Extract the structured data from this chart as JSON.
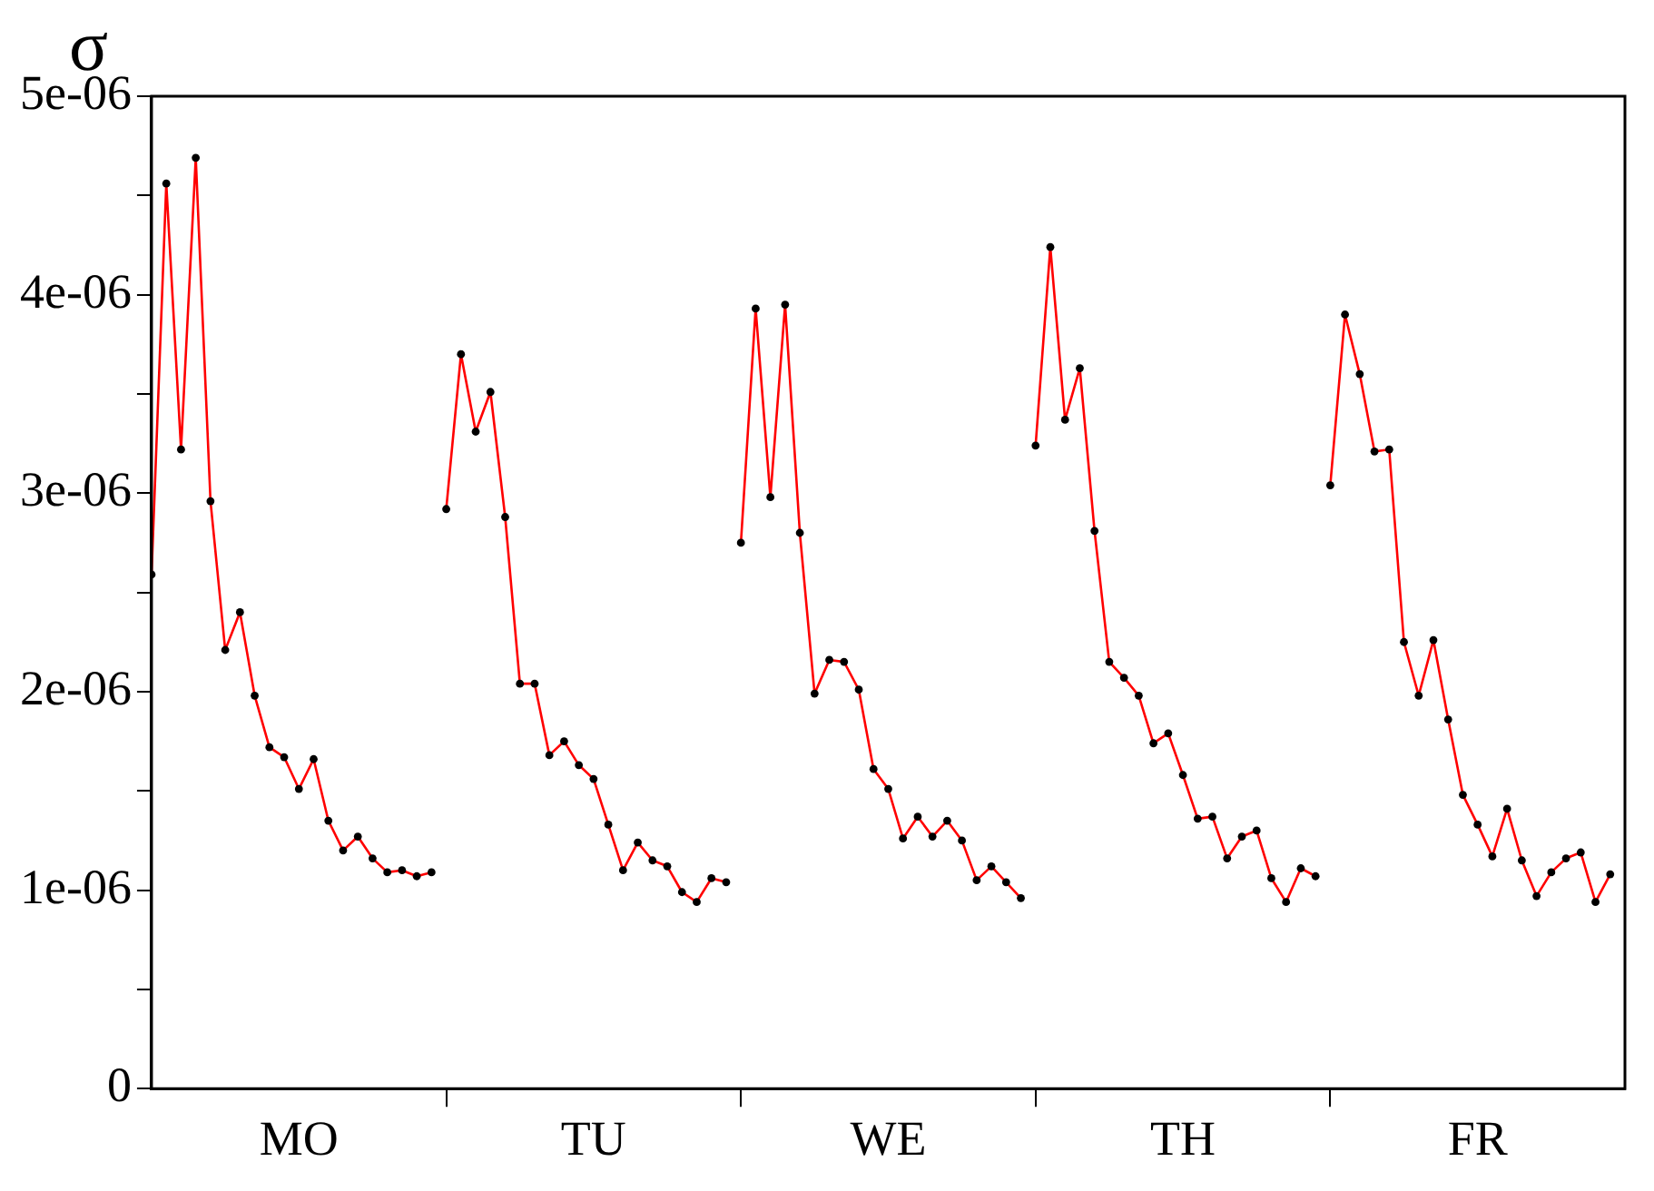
{
  "chart_data": {
    "type": "line",
    "ylabel": "σ",
    "ylim": [
      0,
      5e-06
    ],
    "categories": [
      null,
      null,
      null,
      null,
      null,
      null,
      null,
      null,
      null,
      null,
      "MO",
      null,
      null,
      null,
      null,
      null,
      null,
      null,
      null,
      null,
      null,
      null,
      null,
      null,
      null,
      null,
      null,
      null,
      null,
      null,
      "TU",
      null,
      null,
      null,
      null,
      null,
      null,
      null,
      null,
      null,
      null,
      null,
      null,
      null,
      null,
      null,
      null,
      null,
      null,
      null,
      "WE",
      null,
      null,
      null,
      null,
      null,
      null,
      null,
      null,
      null,
      null,
      null,
      null,
      null,
      null,
      null,
      null,
      null,
      null,
      null,
      "TH",
      null,
      null,
      null,
      null,
      null,
      null,
      null,
      null,
      null,
      null,
      null,
      null,
      null,
      null,
      null,
      null,
      null,
      null,
      null,
      "FR",
      null,
      null,
      null,
      null,
      null,
      null,
      null,
      null,
      null
    ],
    "yticks": [
      0,
      {
        "value": 5e-07,
        "label": null
      },
      {
        "value": 1e-06,
        "label": "1e-06"
      },
      {
        "value": 1.5e-06,
        "label": null
      },
      {
        "value": 2e-06,
        "label": "2e-06"
      },
      {
        "value": 2.5e-06,
        "label": null
      },
      {
        "value": 3e-06,
        "label": "3e-06"
      },
      {
        "value": 3.5e-06,
        "label": null
      },
      {
        "value": 4e-06,
        "label": "4e-06"
      },
      {
        "value": 4.5e-06,
        "label": null
      },
      {
        "value": 5e-06,
        "label": "5e-06"
      }
    ],
    "marker": "circle",
    "line_style": "solid",
    "series": [
      {
        "color": "#ff0000",
        "values": [
          2.59e-06,
          4.56e-06,
          3.22e-06,
          4.69e-06,
          2.96e-06,
          2.21e-06,
          2.4e-06,
          1.98e-06,
          1.72e-06,
          1.67e-06,
          1.51e-06,
          1.66e-06,
          1.35e-06,
          1.2e-06,
          1.27e-06,
          1.16e-06,
          1.09e-06,
          1.1e-06,
          1.07e-06,
          1.09e-06,
          null,
          null,
          null,
          null,
          null,
          null,
          null,
          null,
          null,
          null,
          null,
          null,
          null,
          null,
          null,
          null,
          null,
          null,
          null,
          null,
          null,
          null,
          null,
          null,
          null,
          null,
          null,
          null,
          null,
          null,
          null,
          null,
          null,
          null,
          null,
          null,
          null,
          null,
          null,
          null,
          null,
          null,
          null,
          null,
          null,
          null,
          null,
          null,
          null,
          null,
          null,
          null,
          null,
          null,
          null,
          null,
          null,
          null,
          null,
          null,
          null,
          null,
          null,
          null,
          null,
          null,
          null,
          null,
          null,
          null,
          null,
          null,
          null,
          null,
          null,
          null,
          null,
          null,
          null,
          null
        ]
      },
      {
        "color": "#ff0000",
        "values": [
          null,
          null,
          null,
          null,
          null,
          null,
          null,
          null,
          null,
          null,
          null,
          null,
          null,
          null,
          null,
          null,
          null,
          null,
          null,
          null,
          2.92e-06,
          3.7e-06,
          3.31e-06,
          3.51e-06,
          2.88e-06,
          2.04e-06,
          2.04e-06,
          1.68e-06,
          1.75e-06,
          1.63e-06,
          1.56e-06,
          1.33e-06,
          1.1e-06,
          1.24e-06,
          1.15e-06,
          1.12e-06,
          9.9e-07,
          9.4e-07,
          1.06e-06,
          1.04e-06,
          null,
          null,
          null,
          null,
          null,
          null,
          null,
          null,
          null,
          null,
          null,
          null,
          null,
          null,
          null,
          null,
          null,
          null,
          null,
          null,
          null,
          null,
          null,
          null,
          null,
          null,
          null,
          null,
          null,
          null,
          null,
          null,
          null,
          null,
          null,
          null,
          null,
          null,
          null,
          null,
          null,
          null,
          null,
          null,
          null,
          null,
          null,
          null,
          null,
          null,
          null,
          null,
          null,
          null,
          null,
          null,
          null,
          null,
          null,
          null
        ]
      },
      {
        "color": "#ff0000",
        "values": [
          null,
          null,
          null,
          null,
          null,
          null,
          null,
          null,
          null,
          null,
          null,
          null,
          null,
          null,
          null,
          null,
          null,
          null,
          null,
          null,
          null,
          null,
          null,
          null,
          null,
          null,
          null,
          null,
          null,
          null,
          null,
          null,
          null,
          null,
          null,
          null,
          null,
          null,
          null,
          null,
          2.75e-06,
          3.93e-06,
          2.98e-06,
          3.95e-06,
          2.8e-06,
          1.99e-06,
          2.16e-06,
          2.15e-06,
          2.01e-06,
          1.61e-06,
          1.51e-06,
          1.26e-06,
          1.37e-06,
          1.27e-06,
          1.35e-06,
          1.25e-06,
          1.05e-06,
          1.12e-06,
          1.04e-06,
          9.6e-07,
          null,
          null,
          null,
          null,
          null,
          null,
          null,
          null,
          null,
          null,
          null,
          null,
          null,
          null,
          null,
          null,
          null,
          null,
          null,
          null,
          null,
          null,
          null,
          null,
          null,
          null,
          null,
          null,
          null,
          null,
          null,
          null,
          null,
          null,
          null,
          null,
          null,
          null,
          null,
          null
        ]
      },
      {
        "color": "#ff0000",
        "values": [
          null,
          null,
          null,
          null,
          null,
          null,
          null,
          null,
          null,
          null,
          null,
          null,
          null,
          null,
          null,
          null,
          null,
          null,
          null,
          null,
          null,
          null,
          null,
          null,
          null,
          null,
          null,
          null,
          null,
          null,
          null,
          null,
          null,
          null,
          null,
          null,
          null,
          null,
          null,
          null,
          null,
          null,
          null,
          null,
          null,
          null,
          null,
          null,
          null,
          null,
          null,
          null,
          null,
          null,
          null,
          null,
          null,
          null,
          null,
          null,
          3.24e-06,
          4.24e-06,
          3.37e-06,
          3.63e-06,
          2.81e-06,
          2.15e-06,
          2.07e-06,
          1.98e-06,
          1.74e-06,
          1.79e-06,
          1.58e-06,
          1.36e-06,
          1.37e-06,
          1.16e-06,
          1.27e-06,
          1.3e-06,
          1.06e-06,
          9.4e-07,
          1.11e-06,
          1.07e-06,
          null,
          null,
          null,
          null,
          null,
          null,
          null,
          null,
          null,
          null,
          null,
          null,
          null,
          null,
          null,
          null,
          null,
          null,
          null,
          null
        ]
      },
      {
        "color": "#ff0000",
        "values": [
          null,
          null,
          null,
          null,
          null,
          null,
          null,
          null,
          null,
          null,
          null,
          null,
          null,
          null,
          null,
          null,
          null,
          null,
          null,
          null,
          null,
          null,
          null,
          null,
          null,
          null,
          null,
          null,
          null,
          null,
          null,
          null,
          null,
          null,
          null,
          null,
          null,
          null,
          null,
          null,
          null,
          null,
          null,
          null,
          null,
          null,
          null,
          null,
          null,
          null,
          null,
          null,
          null,
          null,
          null,
          null,
          null,
          null,
          null,
          null,
          null,
          null,
          null,
          null,
          null,
          null,
          null,
          null,
          null,
          null,
          null,
          null,
          null,
          null,
          null,
          null,
          null,
          null,
          null,
          null,
          3.04e-06,
          3.9e-06,
          3.6e-06,
          3.21e-06,
          3.22e-06,
          2.25e-06,
          1.98e-06,
          2.26e-06,
          1.86e-06,
          1.48e-06,
          1.33e-06,
          1.17e-06,
          1.41e-06,
          1.15e-06,
          9.7e-07,
          1.09e-06,
          1.16e-06,
          1.19e-06,
          9.4e-07,
          1.08e-06
        ]
      }
    ]
  }
}
